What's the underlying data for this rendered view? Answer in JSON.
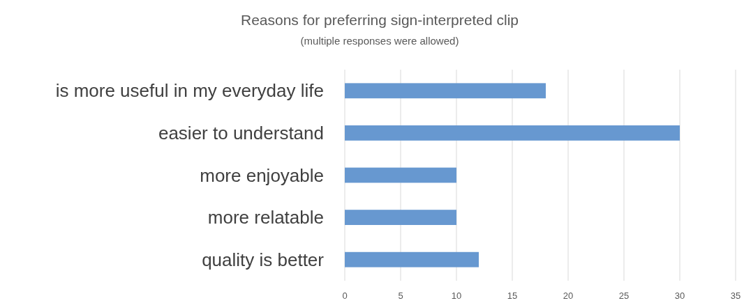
{
  "chart_data": {
    "type": "bar",
    "orientation": "horizontal",
    "title": "Reasons for preferring sign-interpreted clip",
    "subtitle": "(multiple responses were allowed)",
    "categories": [
      "is more useful in my everyday life",
      "easier to understand",
      "more enjoyable",
      "more relatable",
      "quality is better"
    ],
    "values": [
      18,
      30,
      10,
      10,
      12
    ],
    "color": "#6798d0",
    "xlim": [
      0,
      35
    ],
    "xticks": [
      0,
      5,
      10,
      15,
      20,
      25,
      30,
      35
    ],
    "grid": "x"
  }
}
